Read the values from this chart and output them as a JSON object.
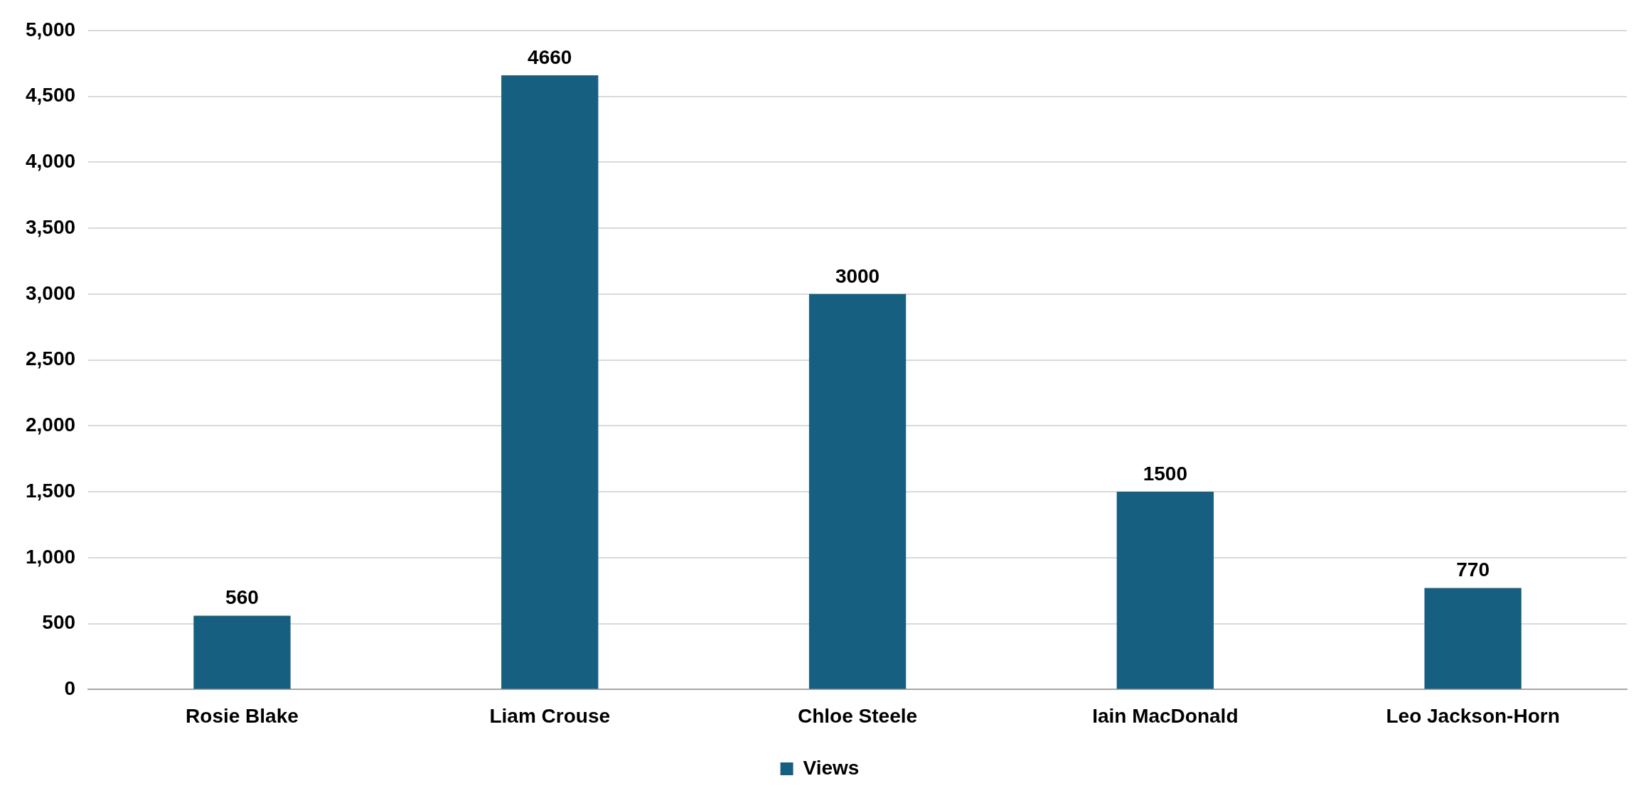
{
  "chart_data": {
    "type": "bar",
    "categories": [
      "Rosie Blake",
      "Liam Crouse",
      "Chloe Steele",
      "Iain MacDonald",
      "Leo Jackson-Horn"
    ],
    "series": [
      {
        "name": "Views",
        "color": "#165f80",
        "values": [
          560,
          4660,
          3000,
          1500,
          770
        ]
      }
    ],
    "ylim": [
      0,
      5000
    ],
    "yticks": [
      {
        "value": 0,
        "label": "0"
      },
      {
        "value": 500,
        "label": "500"
      },
      {
        "value": 1000,
        "label": "1,000"
      },
      {
        "value": 1500,
        "label": "1,500"
      },
      {
        "value": 2000,
        "label": "2,000"
      },
      {
        "value": 2500,
        "label": "2,500"
      },
      {
        "value": 3000,
        "label": "3,000"
      },
      {
        "value": 3500,
        "label": "3,500"
      },
      {
        "value": 4000,
        "label": "4,000"
      },
      {
        "value": 4500,
        "label": "4,500"
      },
      {
        "value": 5000,
        "label": "5,000"
      }
    ],
    "grid": "y",
    "legend": "bottom",
    "data_labels": true
  }
}
